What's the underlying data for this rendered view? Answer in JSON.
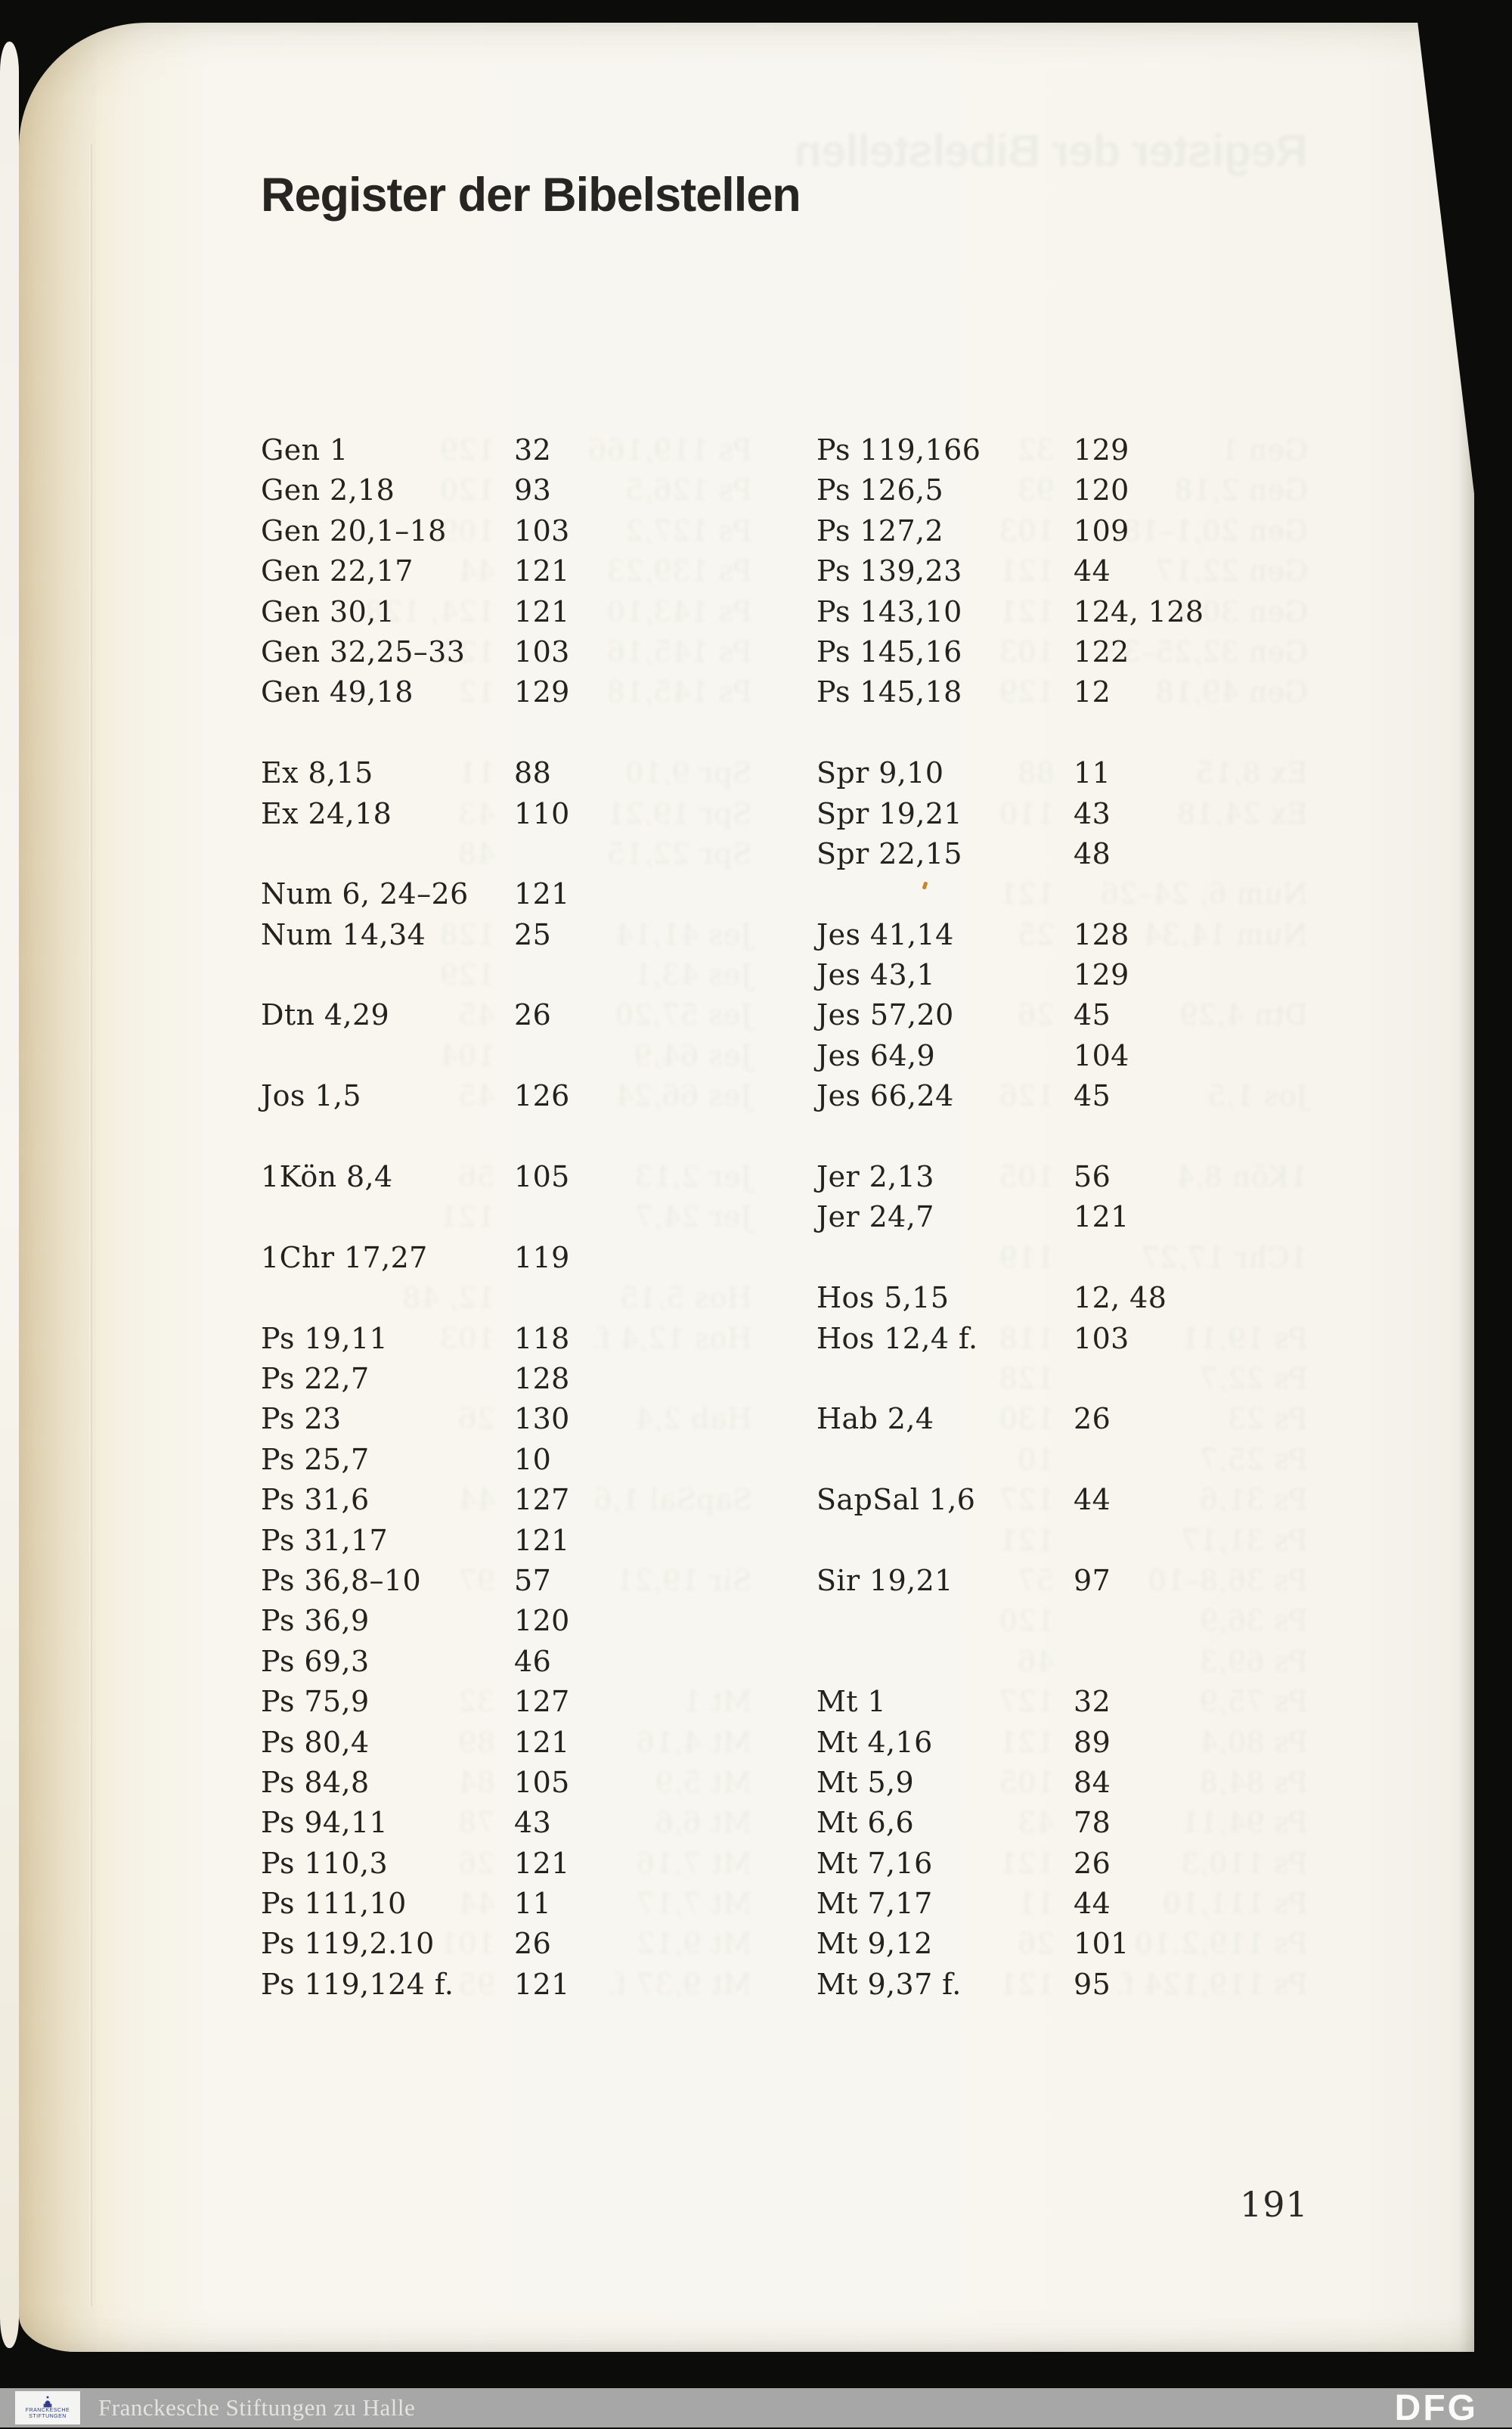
{
  "title": "Register der Bibelstellen",
  "page_number": "191",
  "columns": {
    "left": [
      {
        "ref": "Gen 1",
        "pages": "32"
      },
      {
        "ref": "Gen 2,18",
        "pages": "93"
      },
      {
        "ref": "Gen 20,1–18",
        "pages": "103"
      },
      {
        "ref": "Gen 22,17",
        "pages": "121"
      },
      {
        "ref": "Gen 30,1",
        "pages": "121"
      },
      {
        "ref": "Gen 32,25–33",
        "pages": "103"
      },
      {
        "ref": "Gen 49,18",
        "pages": "129"
      },
      {
        "spacer": true
      },
      {
        "ref": "Ex 8,15",
        "pages": "88"
      },
      {
        "ref": "Ex 24,18",
        "pages": "110"
      },
      {
        "spacer": true
      },
      {
        "ref": "Num 6, 24–26",
        "pages": "121"
      },
      {
        "ref": "Num 14,34",
        "pages": "25"
      },
      {
        "spacer": true
      },
      {
        "ref": "Dtn 4,29",
        "pages": "26"
      },
      {
        "spacer": true
      },
      {
        "ref": "Jos 1,5",
        "pages": "126"
      },
      {
        "spacer": true
      },
      {
        "ref": "1Kön 8,4",
        "pages": "105"
      },
      {
        "spacer": true
      },
      {
        "ref": "1Chr 17,27",
        "pages": "119"
      },
      {
        "spacer": true
      },
      {
        "ref": "Ps 19,11",
        "pages": "118"
      },
      {
        "ref": "Ps 22,7",
        "pages": "128"
      },
      {
        "ref": "Ps 23",
        "pages": "130"
      },
      {
        "ref": "Ps 25,7",
        "pages": "10"
      },
      {
        "ref": "Ps 31,6",
        "pages": "127"
      },
      {
        "ref": "Ps 31,17",
        "pages": "121"
      },
      {
        "ref": "Ps 36,8–10",
        "pages": "57"
      },
      {
        "ref": "Ps 36,9",
        "pages": "120"
      },
      {
        "ref": "Ps 69,3",
        "pages": "46"
      },
      {
        "ref": "Ps 75,9",
        "pages": "127"
      },
      {
        "ref": "Ps 80,4",
        "pages": "121"
      },
      {
        "ref": "Ps 84,8",
        "pages": "105"
      },
      {
        "ref": "Ps 94,11",
        "pages": "43"
      },
      {
        "ref": "Ps 110,3",
        "pages": "121"
      },
      {
        "ref": "Ps 111,10",
        "pages": "11"
      },
      {
        "ref": "Ps 119,2.10",
        "pages": "26"
      },
      {
        "ref": "Ps 119,124 f.",
        "pages": "121"
      }
    ],
    "right": [
      {
        "ref": "Ps 119,166",
        "pages": "129"
      },
      {
        "ref": "Ps 126,5",
        "pages": "120"
      },
      {
        "ref": "Ps 127,2",
        "pages": "109"
      },
      {
        "ref": "Ps 139,23",
        "pages": "44"
      },
      {
        "ref": "Ps 143,10",
        "pages": "124, 128"
      },
      {
        "ref": "Ps 145,16",
        "pages": "122"
      },
      {
        "ref": "Ps 145,18",
        "pages": "12"
      },
      {
        "spacer": true
      },
      {
        "ref": "Spr 9,10",
        "pages": "11"
      },
      {
        "ref": "Spr 19,21",
        "pages": "43"
      },
      {
        "ref": "Spr 22,15",
        "pages": "48"
      },
      {
        "spacer": true
      },
      {
        "ref": "Jes 41,14",
        "pages": "128"
      },
      {
        "ref": "Jes 43,1",
        "pages": "129"
      },
      {
        "ref": "Jes 57,20",
        "pages": "45"
      },
      {
        "ref": "Jes 64,9",
        "pages": "104"
      },
      {
        "ref": "Jes 66,24",
        "pages": "45"
      },
      {
        "spacer": true
      },
      {
        "ref": "Jer 2,13",
        "pages": "56"
      },
      {
        "ref": "Jer 24,7",
        "pages": "121"
      },
      {
        "spacer": true
      },
      {
        "ref": "Hos 5,15",
        "pages": "12, 48"
      },
      {
        "ref": "Hos 12,4 f.",
        "pages": "103"
      },
      {
        "spacer": true
      },
      {
        "ref": "Hab 2,4",
        "pages": "26"
      },
      {
        "spacer": true
      },
      {
        "ref": "SapSal 1,6",
        "pages": "44"
      },
      {
        "spacer": true
      },
      {
        "ref": "Sir 19,21",
        "pages": "97"
      },
      {
        "spacer": true
      },
      {
        "spacer": true
      },
      {
        "ref": "Mt 1",
        "pages": "32"
      },
      {
        "ref": "Mt 4,16",
        "pages": "89"
      },
      {
        "ref": "Mt 5,9",
        "pages": "84"
      },
      {
        "ref": "Mt 6,6",
        "pages": "78"
      },
      {
        "ref": "Mt 7,16",
        "pages": "26"
      },
      {
        "ref": "Mt 7,17",
        "pages": "44"
      },
      {
        "ref": "Mt 9,12",
        "pages": "101"
      },
      {
        "ref": "Mt 9,37 f.",
        "pages": "95"
      }
    ]
  },
  "footer": {
    "logo_line1": "FRANCKESCHE",
    "logo_line2": "STIFTUNGEN",
    "library_name": "Franckesche Stiftungen zu Halle",
    "dfg_label": "DFG"
  },
  "colors": {
    "frame_black": "#0c0c0a",
    "paper_white": "#f8f6f0",
    "paper_edge_cream": "#ecdfc0",
    "ink": "#23221e",
    "footer_gray": "#a7a7a7",
    "logo_blue": "#2e3c8c"
  }
}
